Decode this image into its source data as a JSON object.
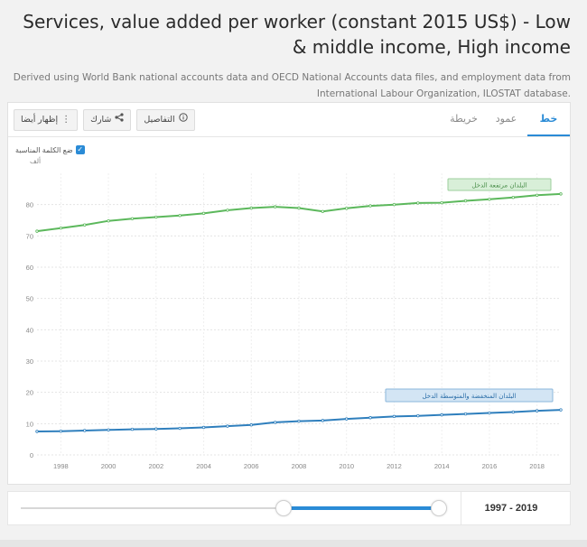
{
  "header": {
    "title": "Services, value added per worker (constant 2015 US$) - Low & middle income, High income",
    "subtitle": "Derived using World Bank national accounts data and OECD National Accounts data files, and employment data from International Labour Organization, ILOSTAT database."
  },
  "tabs": [
    {
      "label": "خط",
      "active": true
    },
    {
      "label": "عمود",
      "active": false
    },
    {
      "label": "خريطة",
      "active": false
    }
  ],
  "actions": {
    "details_label": "التفاصيل",
    "share_label": "شارك",
    "also_show_label": "إظهار أيضا"
  },
  "label_toggle": {
    "label": "ضع الكلمة المناسبة",
    "checked": true
  },
  "colors": {
    "high_income": "#5cb85c",
    "low_middle": "#2f7fbd",
    "accent": "#2a8bd6"
  },
  "chart_data": {
    "type": "line",
    "unit_label": "ألف",
    "ylim": [
      0,
      90
    ],
    "y_ticks": [
      0,
      10,
      20,
      30,
      40,
      50,
      60,
      70,
      80
    ],
    "xlim": [
      1997,
      2019
    ],
    "x_ticks": [
      1998,
      2000,
      2002,
      2004,
      2006,
      2008,
      2010,
      2012,
      2014,
      2016,
      2018
    ],
    "grid": true,
    "series": [
      {
        "name": "البلدان مرتفعة الدخل",
        "color": "#5cb85c",
        "x": [
          1997,
          1998,
          1999,
          2000,
          2001,
          2002,
          2003,
          2004,
          2005,
          2006,
          2007,
          2008,
          2009,
          2010,
          2011,
          2012,
          2013,
          2014,
          2015,
          2016,
          2017,
          2018,
          2019
        ],
        "values": [
          71.5,
          72.5,
          73.5,
          74.8,
          75.5,
          76.0,
          76.5,
          77.2,
          78.2,
          78.9,
          79.3,
          78.9,
          77.8,
          78.8,
          79.6,
          80.0,
          80.5,
          80.6,
          81.2,
          81.7,
          82.3,
          83.0,
          83.4
        ]
      },
      {
        "name": "البلدان المنخفضة والمتوسطة الدخل",
        "color": "#2f7fbd",
        "x": [
          1997,
          1998,
          1999,
          2000,
          2001,
          2002,
          2003,
          2004,
          2005,
          2006,
          2007,
          2008,
          2009,
          2010,
          2011,
          2012,
          2013,
          2014,
          2015,
          2016,
          2017,
          2018,
          2019
        ],
        "values": [
          7.5,
          7.6,
          7.8,
          8.0,
          8.2,
          8.3,
          8.5,
          8.8,
          9.2,
          9.6,
          10.4,
          10.8,
          11.0,
          11.5,
          11.9,
          12.3,
          12.5,
          12.8,
          13.1,
          13.4,
          13.7,
          14.1,
          14.4
        ]
      }
    ]
  },
  "range": {
    "label": "1997 - 2019",
    "start": 1997,
    "end": 2019
  }
}
